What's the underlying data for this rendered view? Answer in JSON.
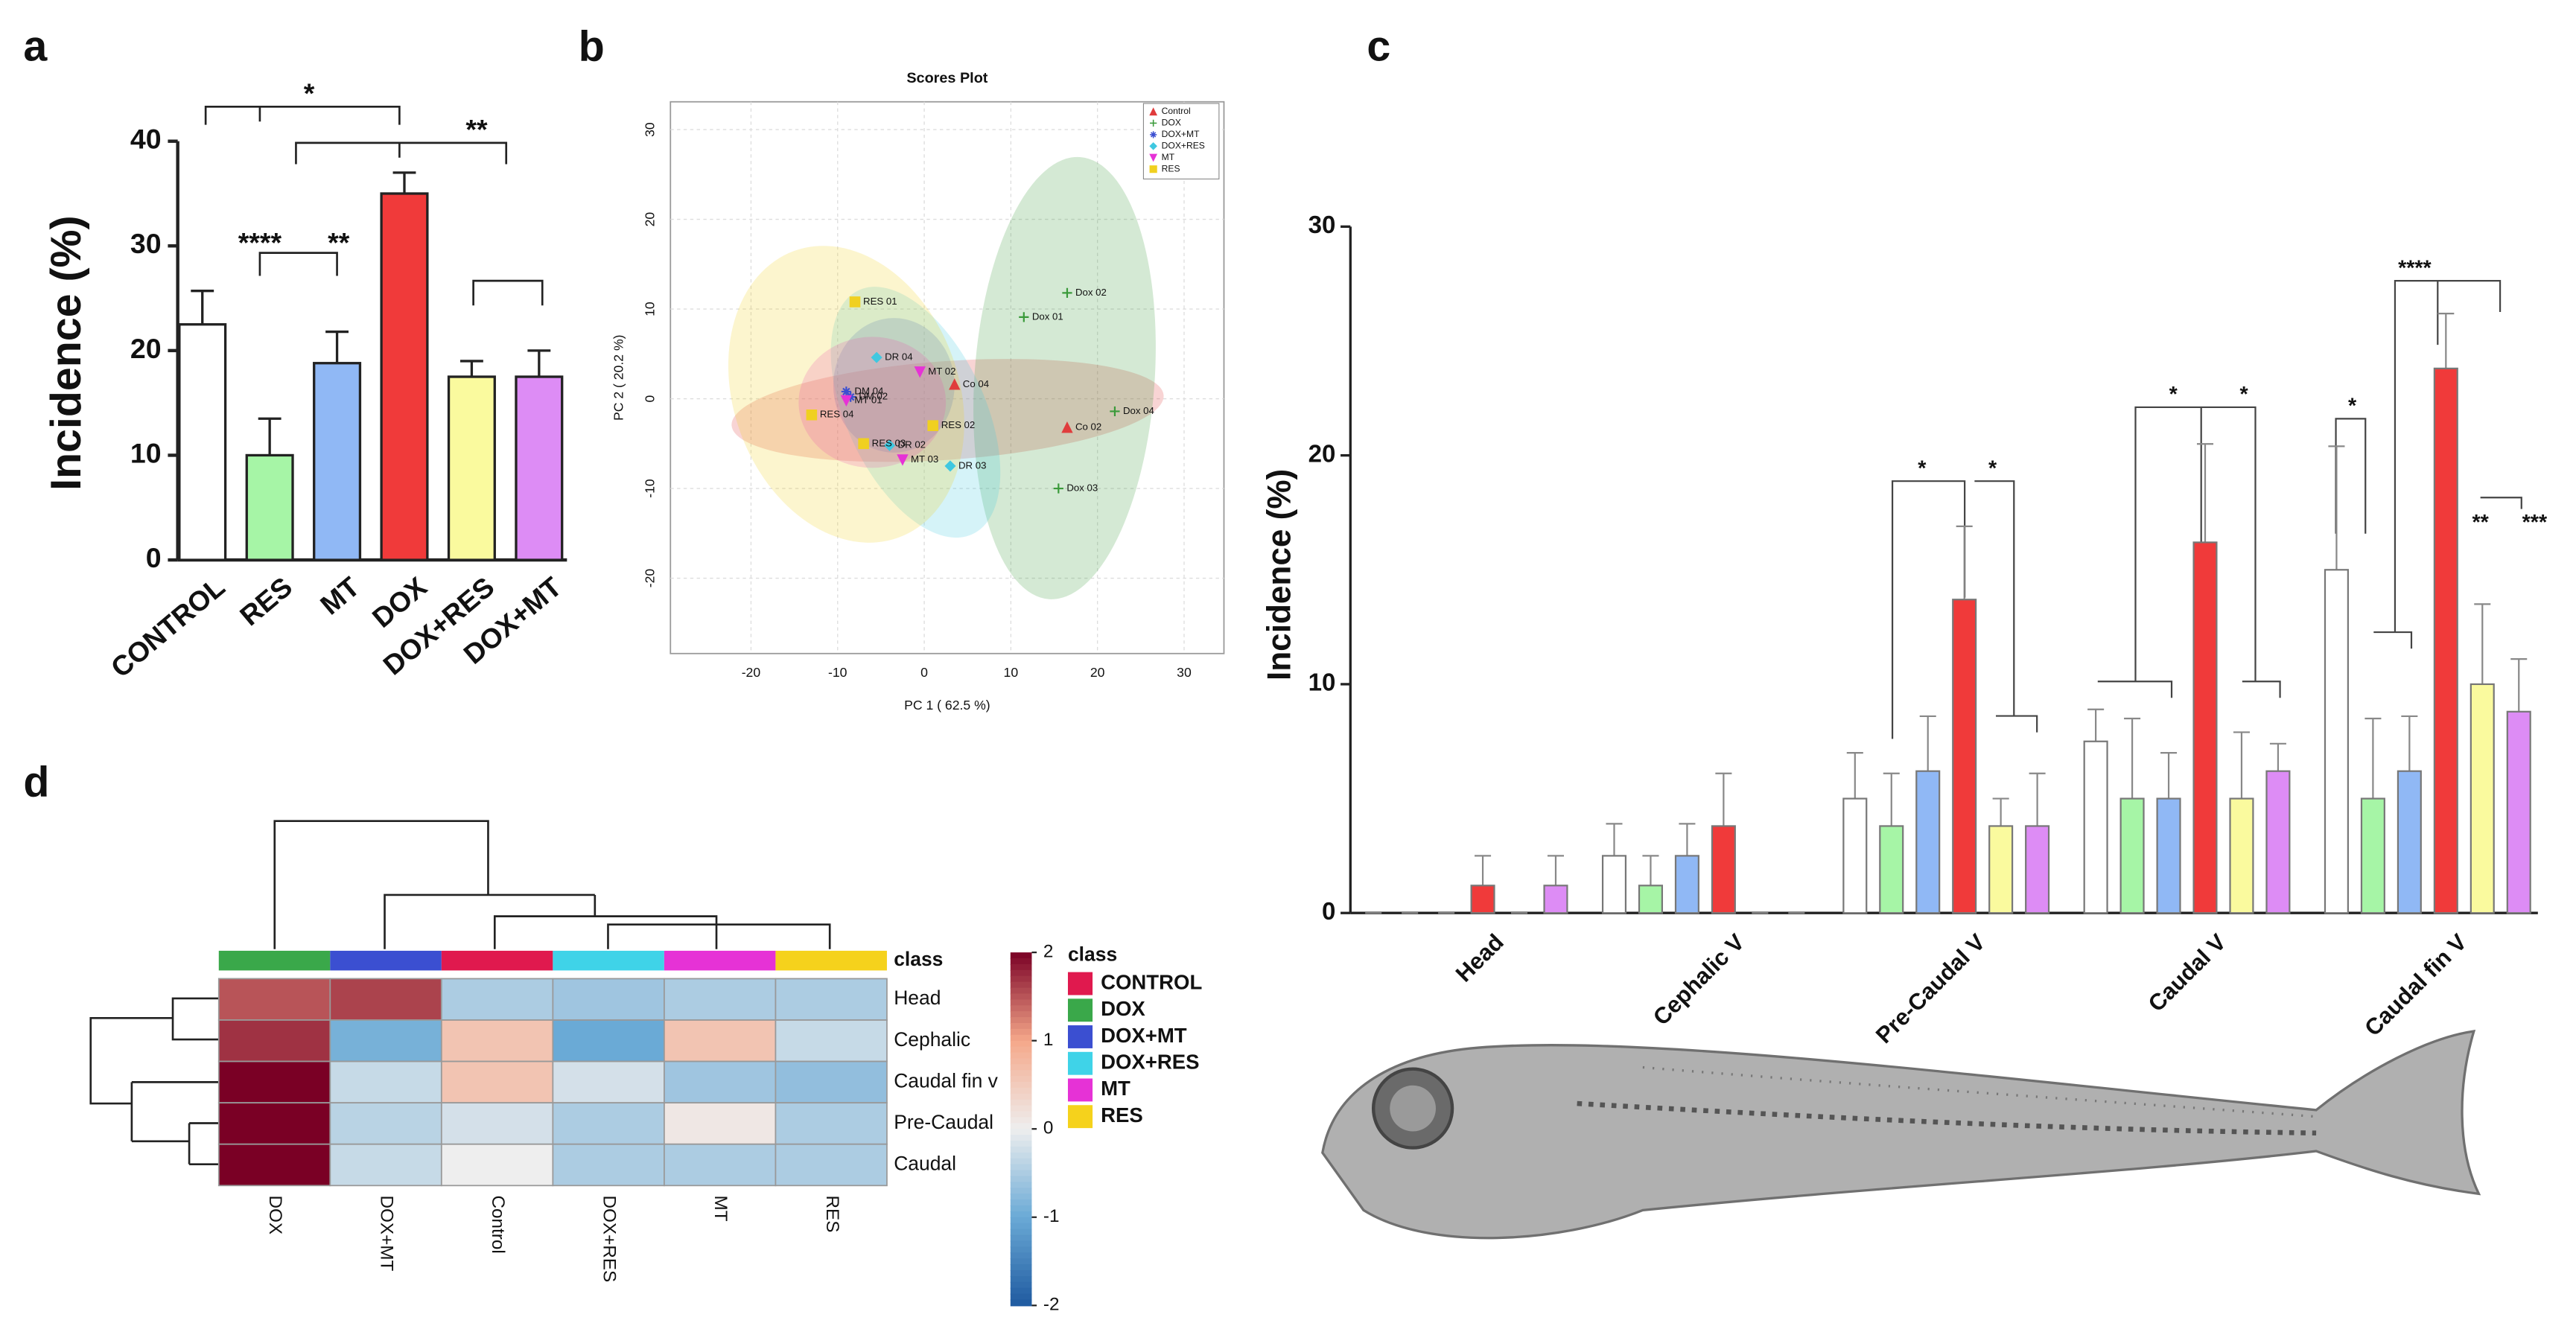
{
  "chart_data": [
    {
      "type": "bar",
      "panel_label": "a",
      "ylabel": "Incidence (%)",
      "categories": [
        "CONTROL",
        "RES",
        "MT",
        "DOX",
        "DOX+RES",
        "DOX+MT"
      ],
      "values": [
        22.5,
        10,
        18.8,
        35,
        17.5,
        17.5
      ],
      "errors": [
        3.2,
        3.5,
        3,
        2,
        1.5,
        2.5
      ],
      "colors": [
        "#ffffff",
        "#a6f5a6",
        "#90b8f5",
        "#f03a3a",
        "#fafa9e",
        "#dd8cf5"
      ],
      "ylim": [
        0,
        40
      ],
      "yticks": [
        0,
        10,
        20,
        30,
        40
      ],
      "annotations": [
        "*",
        "****",
        "**",
        "**"
      ]
    },
    {
      "type": "scatter",
      "panel_label": "b",
      "title": "Scores Plot",
      "xlabel": "PC 1 ( 62.5 %)",
      "ylabel": "PC 2 ( 20.2 %)",
      "xlim": [
        -29.3,
        34.6
      ],
      "ylim": [
        -28.4,
        33.1
      ],
      "xticks": [
        -20,
        -10,
        0,
        10,
        20,
        30
      ],
      "yticks": [
        -20,
        -10,
        0,
        10,
        20,
        30
      ],
      "legend": "upper right",
      "series": [
        {
          "name": "Control",
          "color": "#e03c3c",
          "marker": "triangle",
          "x": [
            16.5,
            3.5
          ],
          "y": [
            -3.2,
            1.6
          ],
          "labels": [
            "Co 02",
            "Co 04"
          ],
          "ellipse": {
            "center": [
              2.7,
              -1.3
            ],
            "radii": [
              25,
              5.5
            ],
            "angle": -4
          }
        },
        {
          "name": "DOX",
          "color": "#3a9a3a",
          "marker": "plus",
          "x": [
            16.5,
            11.5,
            22,
            15.5
          ],
          "y": [
            11.8,
            9.1,
            -1.4,
            -10
          ],
          "labels": [
            "Dox 02",
            "Dox 01",
            "Dox 04",
            "Dox 03"
          ],
          "ellipse": {
            "center": [
              16.2,
              2.3
            ],
            "radii": [
              10.4,
              24.7
            ],
            "angle": 4
          }
        },
        {
          "name": "DOX+MT",
          "color": "#3b4fd1",
          "marker": "star",
          "x": [
            -9,
            -8.5
          ],
          "y": [
            0.8,
            0.2
          ],
          "labels": [
            "DM 04",
            "DM 02"
          ],
          "ellipse": {
            "center": [
              -3.5,
              1.5
            ],
            "radii": [
              7,
              7.5
            ],
            "angle": 0
          }
        },
        {
          "name": "DOX+RES",
          "color": "#3fc8e0",
          "marker": "diamond",
          "x": [
            -5.5,
            3,
            -4
          ],
          "y": [
            4.6,
            -7.5,
            -5.2
          ],
          "labels": [
            "DR 04",
            "DR 03",
            "DR 02"
          ],
          "ellipse": {
            "center": [
              -1,
              -1.5
            ],
            "radii": [
              8,
              15
            ],
            "angle": -25
          }
        },
        {
          "name": "MT",
          "color": "#e632d6",
          "marker": "down",
          "x": [
            -0.5,
            -9,
            -2.5
          ],
          "y": [
            3,
            -0.2,
            -6.8
          ],
          "labels": [
            "MT 02",
            "MT 01",
            "MT 03"
          ],
          "ellipse": {
            "center": [
              -6,
              -0.4
            ],
            "radii": [
              8.5,
              7.3
            ],
            "angle": 0
          }
        },
        {
          "name": "RES",
          "color": "#f0d020",
          "marker": "square",
          "x": [
            -8,
            -13,
            -7,
            1
          ],
          "y": [
            10.8,
            -1.8,
            -5,
            -3
          ],
          "labels": [
            "RES 01",
            "RES 04",
            "RES 03",
            "RES 02"
          ],
          "ellipse": {
            "center": [
              -9,
              0.5
            ],
            "radii": [
              13,
              17
            ],
            "angle": -20
          }
        }
      ]
    },
    {
      "type": "grouped_bar",
      "panel_label": "c",
      "ylabel": "Incidence (%)",
      "categories": [
        "Head",
        "Cephalic V",
        "Pre-Caudal V",
        "Caudal V",
        "Caudal fin V"
      ],
      "ylim": [
        0,
        30
      ],
      "yticks": [
        0,
        10,
        20,
        30
      ],
      "series": [
        {
          "name": "CONTROL",
          "color": "#ffffff",
          "values": [
            0,
            2.5,
            5,
            7.5,
            15
          ],
          "errors": [
            0,
            1.4,
            2,
            1.4,
            5.4
          ]
        },
        {
          "name": "RES",
          "color": "#a6f5a6",
          "values": [
            0,
            1.2,
            3.8,
            5,
            5
          ],
          "errors": [
            0,
            1.3,
            2.3,
            3.5,
            3.5
          ]
        },
        {
          "name": "MT",
          "color": "#90b8f5",
          "values": [
            0,
            2.5,
            6.2,
            5,
            6.2
          ],
          "errors": [
            0,
            1.4,
            2.4,
            2,
            2.4
          ]
        },
        {
          "name": "DOX",
          "color": "#f03a3a",
          "values": [
            1.2,
            3.8,
            13.7,
            16.2,
            23.8
          ],
          "errors": [
            1.3,
            2.3,
            3.2,
            4.3,
            2.4
          ]
        },
        {
          "name": "DOX+RES",
          "color": "#fafa9e",
          "values": [
            0,
            0,
            3.8,
            5,
            10
          ],
          "errors": [
            0,
            0,
            1.2,
            2.9,
            3.5
          ]
        },
        {
          "name": "DOX+MT",
          "color": "#dd8cf5",
          "values": [
            1.2,
            0,
            3.8,
            6.2,
            8.8
          ],
          "errors": [
            1.3,
            0,
            2.3,
            1.2,
            2.3
          ]
        }
      ],
      "annotations": [
        "*",
        "*",
        "*",
        "*",
        "*",
        "****",
        "**",
        "***"
      ]
    },
    {
      "type": "heatmap",
      "panel_label": "d",
      "columns": [
        "DOX",
        "DOX+MT",
        "Control",
        "DOX+RES",
        "MT",
        "RES"
      ],
      "column_colors": [
        "#3aa84a",
        "#3b4fd1",
        "#e0194e",
        "#3fd3e8",
        "#e632d6",
        "#f5d21c"
      ],
      "rows": [
        "Head",
        "Cephalic",
        "Caudal fin v",
        "Pre-Caudal",
        "Caudal"
      ],
      "values": [
        [
          1.5,
          1.6,
          -0.5,
          -0.6,
          -0.5,
          -0.5
        ],
        [
          1.7,
          -0.9,
          0.6,
          -1.0,
          0.6,
          -0.3
        ],
        [
          2.0,
          -0.3,
          0.6,
          -0.2,
          -0.6,
          -0.7
        ],
        [
          2.0,
          -0.4,
          -0.2,
          -0.5,
          0.1,
          -0.5
        ],
        [
          2.0,
          -0.3,
          0.0,
          -0.5,
          -0.5,
          -0.5
        ]
      ],
      "class_label": "class",
      "legend_title": "class",
      "legend": [
        {
          "name": "CONTROL",
          "color": "#e0194e"
        },
        {
          "name": "DOX",
          "color": "#3aa84a"
        },
        {
          "name": "DOX+MT",
          "color": "#3b4fd1"
        },
        {
          "name": "DOX+RES",
          "color": "#3fd3e8"
        },
        {
          "name": "MT",
          "color": "#e632d6"
        },
        {
          "name": "RES",
          "color": "#f5d21c"
        }
      ],
      "zlim": [
        -2,
        2
      ],
      "zticks": [
        -2,
        -1,
        0,
        1,
        2
      ],
      "colormap": [
        "#1f5aa0",
        "#6aaad6",
        "#eeeeee",
        "#f5a88a",
        "#7a0025"
      ]
    }
  ]
}
